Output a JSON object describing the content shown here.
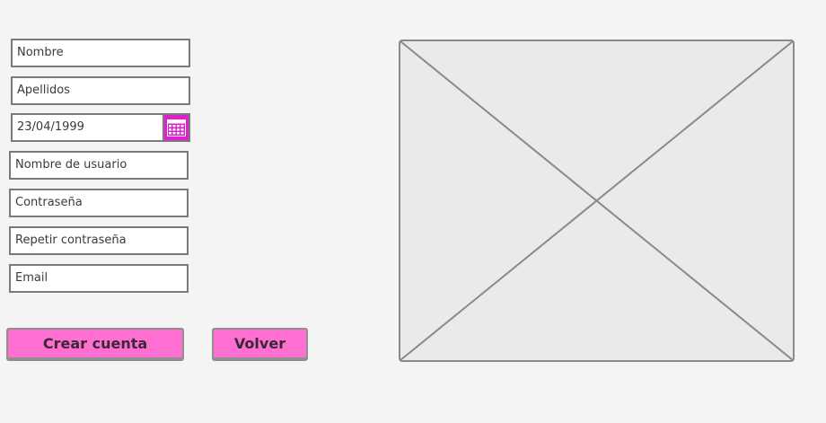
{
  "form": {
    "nombre": "Nombre",
    "apellidos": "Apellidos",
    "fecha_nacimiento": "23/04/1999",
    "usuario": "Nombre de usuario",
    "contrasena": "Contraseña",
    "repetir_contrasena": "Repetir contraseña",
    "email": "Email"
  },
  "buttons": {
    "crear_cuenta": "Crear cuenta",
    "volver": "Volver"
  },
  "icons": {
    "calendar": "calendar-icon",
    "image_placeholder": "image-placeholder-icon"
  },
  "colors": {
    "accent": "#ff6fd2",
    "calendar_accent": "#e020d0",
    "border": "#7a7a7a",
    "background": "#f4f4f4"
  }
}
